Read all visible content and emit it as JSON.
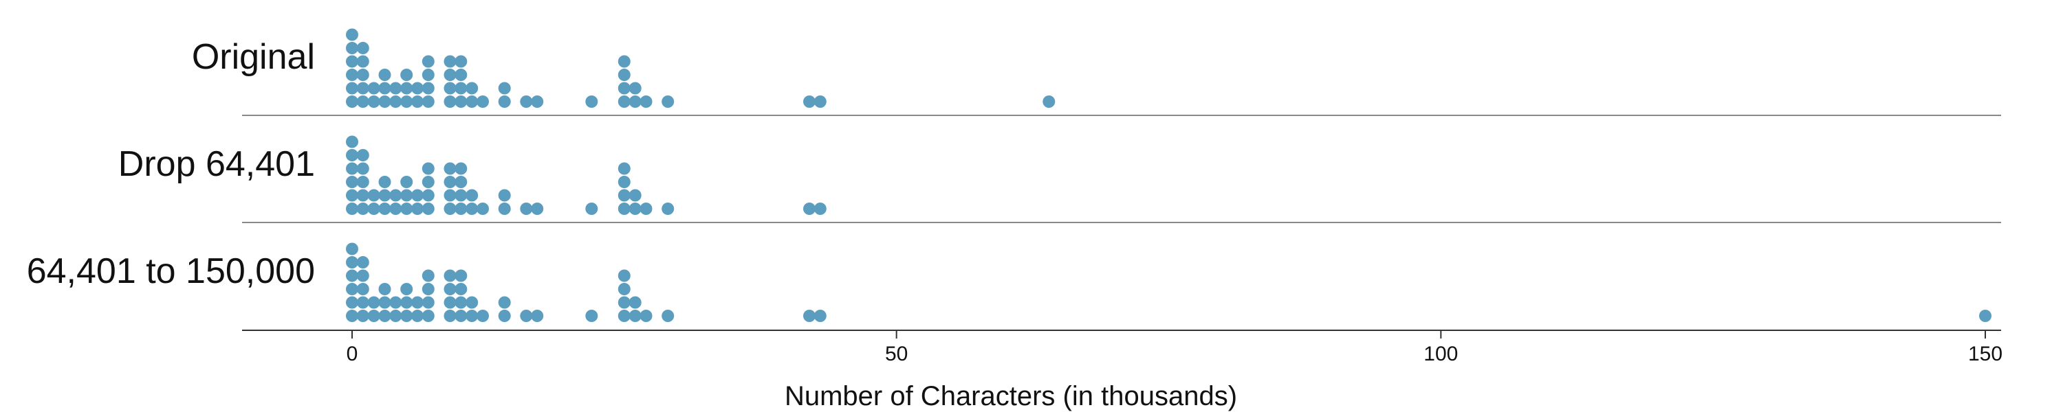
{
  "chart_data": {
    "type": "dot plot",
    "xlabel": "Number of Characters (in thousands)",
    "xlim": [
      -10,
      150
    ],
    "xticks": [
      0,
      50,
      100,
      150
    ],
    "dot_color": "#5B9DBF",
    "rows": [
      {
        "label": "Original",
        "values": [
          0,
          0,
          0,
          0,
          0,
          0,
          1,
          1,
          1,
          1,
          1,
          2,
          2,
          3,
          3,
          3,
          4,
          4,
          5,
          5,
          5,
          6,
          6,
          7,
          7,
          7,
          7,
          9,
          9,
          9,
          9,
          10,
          10,
          10,
          10,
          11,
          11,
          12,
          14,
          14,
          16,
          17,
          22,
          25,
          25,
          25,
          25,
          26,
          26,
          27,
          29,
          42,
          43,
          64
        ]
      },
      {
        "label": "Drop 64,401",
        "values": [
          0,
          0,
          0,
          0,
          0,
          0,
          1,
          1,
          1,
          1,
          1,
          2,
          2,
          3,
          3,
          3,
          4,
          4,
          5,
          5,
          5,
          6,
          6,
          7,
          7,
          7,
          7,
          9,
          9,
          9,
          9,
          10,
          10,
          10,
          10,
          11,
          11,
          12,
          14,
          14,
          16,
          17,
          22,
          25,
          25,
          25,
          25,
          26,
          26,
          27,
          29,
          42,
          43
        ]
      },
      {
        "label": "64,401 to 150,000",
        "values": [
          0,
          0,
          0,
          0,
          0,
          0,
          1,
          1,
          1,
          1,
          1,
          2,
          2,
          3,
          3,
          3,
          4,
          4,
          5,
          5,
          5,
          6,
          6,
          7,
          7,
          7,
          7,
          9,
          9,
          9,
          9,
          10,
          10,
          10,
          10,
          11,
          11,
          12,
          14,
          14,
          16,
          17,
          22,
          25,
          25,
          25,
          25,
          26,
          26,
          27,
          29,
          42,
          43,
          150
        ]
      }
    ]
  }
}
